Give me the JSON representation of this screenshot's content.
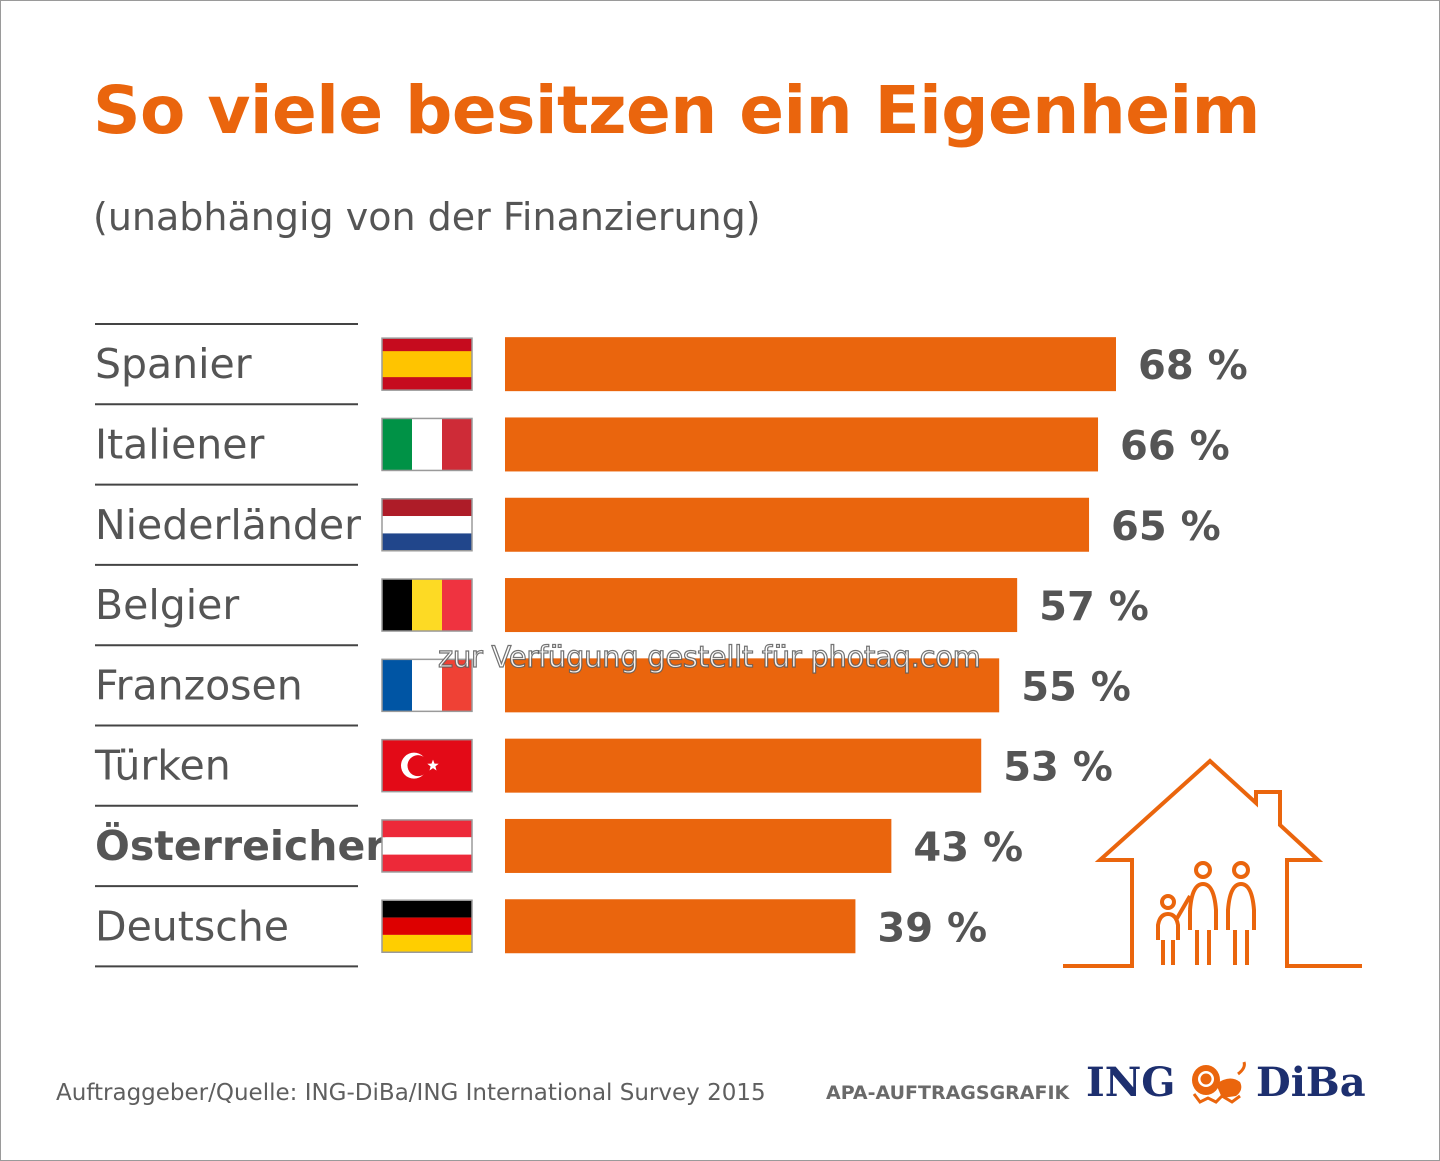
{
  "header": {
    "title": "So viele besitzen ein Eigenheim",
    "subtitle": "(unabhängig von der Finanzierung)"
  },
  "footer": {
    "source": "Auftraggeber/Quelle: ING-DiBa/ING International Survey 2015",
    "credit": "APA-AUFTRAGSGRAFIK",
    "logo_left": "ING",
    "logo_right": "DiBa"
  },
  "watermark": "zur Verfügung gestellt für photaq.com",
  "colors": {
    "accent": "#ea650d",
    "label": "#555555",
    "logo": "#1d2f6f"
  },
  "chart_data": {
    "type": "bar",
    "orientation": "horizontal",
    "categories": [
      "Spanier",
      "Italiener",
      "Niederländer",
      "Belgier",
      "Franzosen",
      "Türken",
      "Österreicher",
      "Deutsche"
    ],
    "values": [
      68,
      66,
      65,
      57,
      55,
      53,
      43,
      39
    ],
    "value_labels": [
      "68 %",
      "66 %",
      "65 %",
      "57 %",
      "55 %",
      "53 %",
      "43 %",
      "39 %"
    ],
    "highlight": "Österreicher",
    "flags": [
      "spain-flag-icon",
      "italy-flag-icon",
      "netherlands-flag-icon",
      "belgium-flag-icon",
      "france-flag-icon",
      "turkey-flag-icon",
      "austria-flag-icon",
      "germany-flag-icon"
    ],
    "xlim": [
      0,
      100
    ],
    "unit": "%",
    "bar_color": "#ea650d",
    "illustration": "house-family-icon"
  }
}
